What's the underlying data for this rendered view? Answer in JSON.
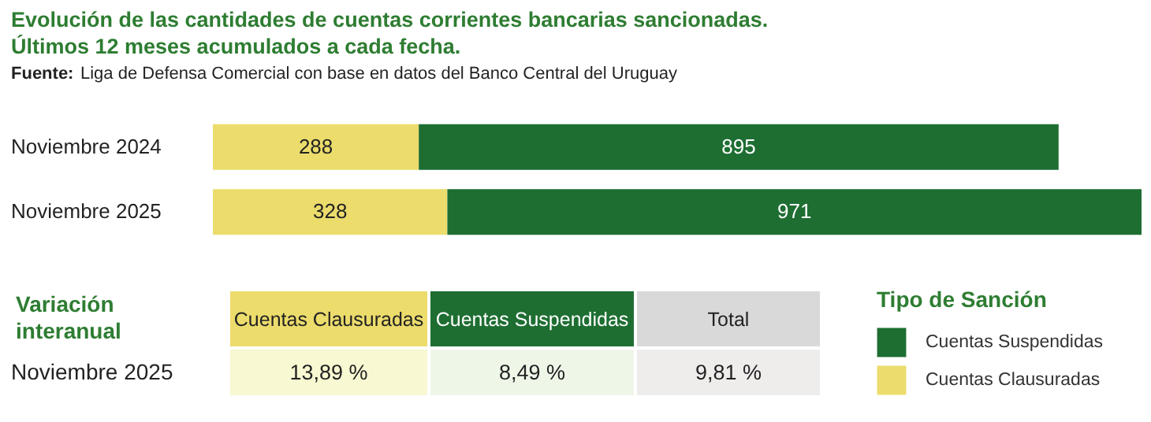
{
  "chart_data": {
    "type": "bar",
    "orientation": "horizontal",
    "stacked": true,
    "data_labels": true,
    "legend": "bottom right",
    "tick_labels": "y",
    "title": "Evolución de las cantidades de cuentas corrientes bancarias sancionadas.\nÚltimos 12 meses acumulados a cada fecha.",
    "subtitle": "Fuente: Liga de Defensa Comercial con base en datos del Banco Central del Uruguay",
    "legend_title": "Tipo de Sanción",
    "categories": [
      "Noviembre 2024",
      "Noviembre 2025"
    ],
    "series": [
      {
        "name": "Cuentas Clausuradas",
        "color": "#ecdc6c",
        "values": [
          288,
          328
        ]
      },
      {
        "name": "Cuentas Suspendidas",
        "color": "#1e6e32",
        "values": [
          895,
          971
        ]
      }
    ],
    "annotations": [
      "Variación\ninteranual",
      "Cuentas Clausuradas",
      "Cuentas Suspendidas",
      "Total",
      "Noviembre 2025",
      "13,89 %",
      "8,49 %",
      "9,81 %"
    ]
  }
}
